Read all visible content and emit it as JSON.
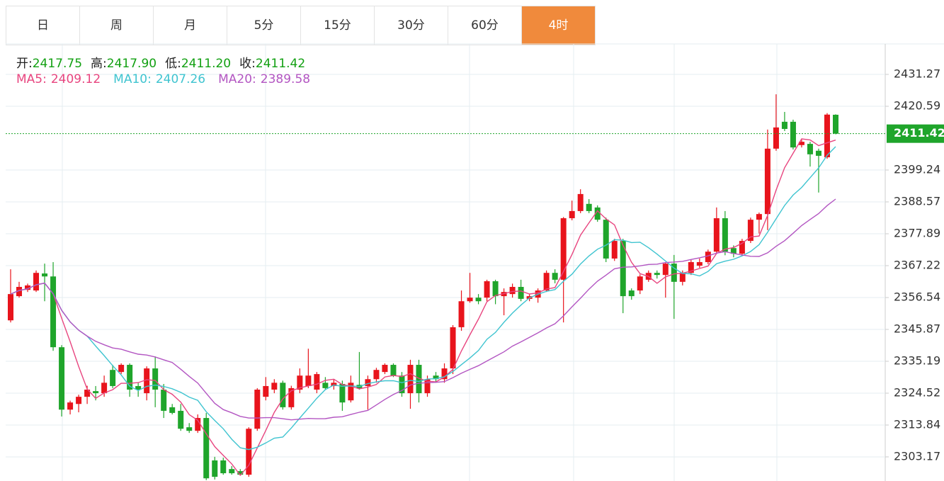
{
  "tabs": [
    "日",
    "周",
    "月",
    "5分",
    "15分",
    "30分",
    "60分",
    "4时"
  ],
  "active_tab": 7,
  "quote": [
    {
      "label": "开:",
      "value": "2417.75"
    },
    {
      "label": "高:",
      "value": "2417.90"
    },
    {
      "label": "低:",
      "value": "2411.20"
    },
    {
      "label": "收:",
      "value": "2411.42"
    }
  ],
  "chart_data": {
    "type": "candlestick",
    "ma": [
      {
        "name": "MA5:",
        "value": "2409.12",
        "color": "#e8457f"
      },
      {
        "name": "MA10:",
        "value": "2407.26",
        "color": "#3fc4d0"
      },
      {
        "name": "MA20:",
        "value": "2389.58",
        "color": "#b356c2"
      }
    ],
    "open": [
      2348.9,
      2357.0,
      2359.1,
      2358.9,
      2364.6,
      2363.6,
      2339.9,
      2319.0,
      2320.9,
      2323.3,
      2325.2,
      2324.5,
      2332.3,
      2331.6,
      2334.0,
      2326.9,
      2324.5,
      2332.8,
      2325.7,
      2319.8,
      2318.6,
      2313.1,
      2311.9,
      2316.2,
      2302.0,
      2302.0,
      2299.1,
      2298.4,
      2297.2,
      2312.6,
      2323.3,
      2325.7,
      2328.0,
      2319.8,
      2325.7,
      2326.9,
      2325.7,
      2328.0,
      2326.9,
      2327.6,
      2322.1,
      2327.3,
      2326.9,
      2329.2,
      2331.6,
      2334.0,
      2330.4,
      2324.5,
      2334.0,
      2324.5,
      2330.4,
      2329.2,
      2332.8,
      2346.6,
      2355.3,
      2356.5,
      2356.5,
      2362.0,
      2357.0,
      2357.7,
      2360.1,
      2356.1,
      2356.5,
      2358.9,
      2364.8,
      2362.5,
      2383.1,
      2385.5,
      2387.9,
      2386.7,
      2382.6,
      2369.6,
      2375.5,
      2358.9,
      2358.9,
      2362.5,
      2364.8,
      2364.1,
      2367.9,
      2361.8,
      2364.8,
      2367.2,
      2368.4,
      2371.9,
      2383.1,
      2373.1,
      2371.2,
      2375.5,
      2382.6,
      2384.5,
      2406.4,
      2415.4,
      2415.4,
      2407.6,
      2408.0,
      2405.7,
      2403.5,
      2417.75
    ],
    "high": [
      2366.0,
      2361.8,
      2361.2,
      2365.6,
      2367.9,
      2368.4,
      2340.6,
      2322.0,
      2324.0,
      2327.0,
      2326.9,
      2330.4,
      2334.0,
      2334.5,
      2334.5,
      2328.0,
      2333.5,
      2336.8,
      2327.6,
      2320.9,
      2320.9,
      2314.5,
      2317.4,
      2317.9,
      2303.2,
      2302.9,
      2300.1,
      2299.1,
      2313.1,
      2326.2,
      2329.9,
      2329.2,
      2328.7,
      2327.0,
      2332.8,
      2339.4,
      2331.6,
      2329.9,
      2329.2,
      2328.7,
      2330.4,
      2338.3,
      2330.4,
      2333.0,
      2334.5,
      2334.5,
      2331.6,
      2335.7,
      2335.7,
      2330.4,
      2331.6,
      2334.5,
      2347.3,
      2358.9,
      2364.8,
      2357.7,
      2362.5,
      2362.5,
      2359.6,
      2361.2,
      2362.5,
      2357.7,
      2359.6,
      2365.6,
      2366.0,
      2383.5,
      2389.0,
      2392.8,
      2389.5,
      2387.4,
      2383.3,
      2376.2,
      2376.2,
      2359.6,
      2364.3,
      2365.6,
      2365.6,
      2368.4,
      2370.8,
      2365.6,
      2369.1,
      2369.6,
      2372.6,
      2386.7,
      2385.5,
      2374.0,
      2376.2,
      2383.3,
      2385.0,
      2412.8,
      2424.6,
      2418.7,
      2416.1,
      2409.4,
      2408.7,
      2406.4,
      2418.3,
      2417.9
    ],
    "low": [
      2348.2,
      2356.5,
      2358.4,
      2358.4,
      2355.3,
      2338.7,
      2316.7,
      2317.4,
      2318.1,
      2320.9,
      2322.1,
      2323.3,
      2326.2,
      2330.9,
      2323.3,
      2323.3,
      2322.1,
      2319.8,
      2316.2,
      2317.4,
      2311.9,
      2311.2,
      2311.2,
      2295.4,
      2295.6,
      2297.2,
      2297.2,
      2297.0,
      2296.5,
      2311.9,
      2322.1,
      2324.5,
      2319.0,
      2319.0,
      2324.5,
      2326.2,
      2324.5,
      2325.7,
      2325.7,
      2318.6,
      2321.4,
      2325.7,
      2319.0,
      2328.0,
      2330.9,
      2329.9,
      2323.3,
      2319.3,
      2321.4,
      2323.3,
      2328.0,
      2328.0,
      2330.9,
      2345.4,
      2354.8,
      2354.3,
      2355.3,
      2354.3,
      2350.6,
      2356.5,
      2355.3,
      2355.3,
      2354.8,
      2358.4,
      2361.3,
      2348.2,
      2382.4,
      2384.8,
      2384.8,
      2381.9,
      2368.4,
      2368.8,
      2351.3,
      2355.8,
      2357.7,
      2361.8,
      2362.9,
      2356.5,
      2349.4,
      2360.6,
      2364.1,
      2366.5,
      2367.7,
      2371.2,
      2370.7,
      2370.0,
      2370.5,
      2374.8,
      2378.0,
      2379.1,
      2405.7,
      2412.3,
      2406.1,
      2406.8,
      2400.4,
      2391.7,
      2403.0,
      2411.2
    ],
    "close": [
      2357.7,
      2360.1,
      2360.6,
      2364.8,
      2363.6,
      2339.9,
      2319.0,
      2321.4,
      2323.3,
      2325.7,
      2324.5,
      2328.0,
      2326.9,
      2334.0,
      2325.7,
      2325.7,
      2332.8,
      2325.7,
      2318.6,
      2317.9,
      2312.6,
      2311.9,
      2316.2,
      2296.0,
      2296.5,
      2297.7,
      2297.7,
      2297.2,
      2312.6,
      2325.7,
      2326.9,
      2328.0,
      2319.8,
      2326.2,
      2330.4,
      2330.4,
      2330.9,
      2326.2,
      2328.0,
      2321.4,
      2328.0,
      2326.2,
      2329.2,
      2332.3,
      2334.0,
      2330.4,
      2324.5,
      2334.0,
      2324.5,
      2329.2,
      2329.2,
      2332.8,
      2346.6,
      2355.3,
      2356.5,
      2355.3,
      2362.0,
      2357.0,
      2358.4,
      2360.1,
      2356.1,
      2357.0,
      2358.9,
      2364.8,
      2362.5,
      2383.1,
      2385.5,
      2391.2,
      2385.5,
      2382.6,
      2369.6,
      2375.5,
      2357.0,
      2357.0,
      2363.6,
      2364.8,
      2364.1,
      2367.9,
      2361.8,
      2364.8,
      2368.4,
      2368.4,
      2371.9,
      2383.1,
      2371.9,
      2371.2,
      2375.5,
      2382.6,
      2384.5,
      2406.4,
      2413.5,
      2413.0,
      2406.8,
      2408.7,
      2404.5,
      2404.0,
      2417.8,
      2411.42
    ],
    "ylim": [
      2295.1,
      2441.47
    ],
    "yticks": [
      2431.27,
      2420.59,
      2399.24,
      2388.57,
      2377.89,
      2367.22,
      2356.54,
      2345.87,
      2335.19,
      2324.52,
      2313.84,
      2303.17
    ],
    "grid": true,
    "up_color": "#e8141c",
    "down_color": "#1fa52b",
    "last_color": "#1fa52b"
  }
}
